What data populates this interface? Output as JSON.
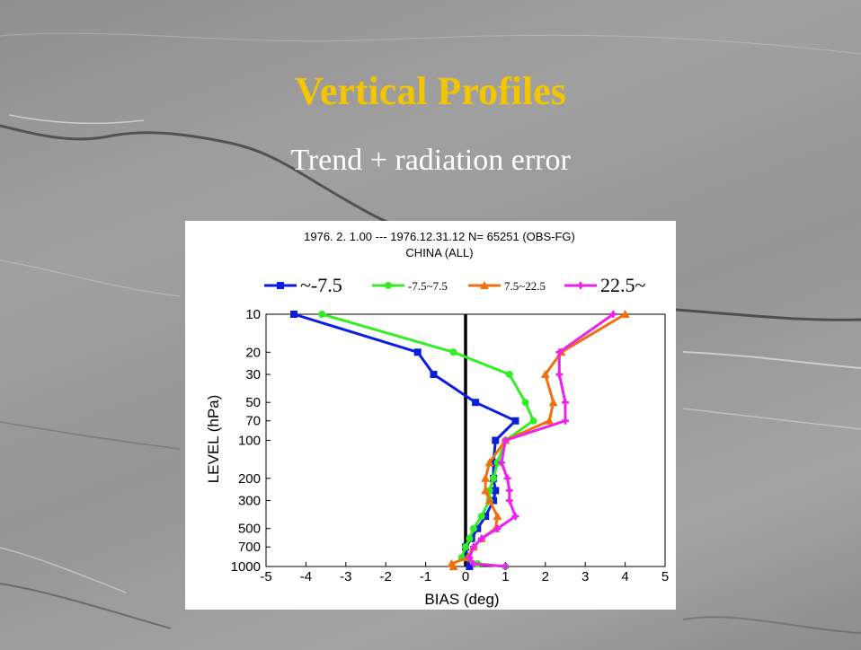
{
  "slide": {
    "title": "Vertical Profiles",
    "subtitle": "Trend + radiation error",
    "title_color": "#f2c500",
    "subtitle_color": "#ffffff"
  },
  "chart_data": {
    "type": "line",
    "header_line1": "1976. 2. 1.00 --- 1976.12.31.12   N= 65251   (OBS-FG)",
    "header_line2": "CHINA (ALL)",
    "xlabel": "BIAS (deg)",
    "ylabel": "LEVEL (hPa)",
    "xlim": [
      -5,
      5
    ],
    "ylim": [
      1000,
      10
    ],
    "y_scale": "log",
    "x_ticks": [
      -5,
      -4,
      -3,
      -2,
      -1,
      0,
      1,
      2,
      3,
      4,
      5
    ],
    "x_tick_labels": [
      "-5",
      "-4",
      "-3",
      "-2",
      "-1",
      "0",
      "1",
      "2",
      "3",
      "4",
      "5"
    ],
    "y_ticks": [
      10,
      20,
      30,
      50,
      70,
      100,
      200,
      300,
      500,
      700,
      1000
    ],
    "y_tick_labels": [
      "10",
      "20",
      "30",
      "50",
      "70",
      "100",
      "200",
      "300",
      "500",
      "700",
      "1000"
    ],
    "zero_line": true,
    "grid": false,
    "legend_position": "top",
    "series": [
      {
        "name": "~-7.5",
        "color": "#0a1ee0",
        "marker": "square",
        "points": [
          [
            -4.3,
            10
          ],
          [
            -1.2,
            20
          ],
          [
            -0.8,
            30
          ],
          [
            0.25,
            50
          ],
          [
            1.25,
            70
          ],
          [
            0.75,
            100
          ],
          [
            0.7,
            150
          ],
          [
            0.7,
            200
          ],
          [
            0.75,
            250
          ],
          [
            0.7,
            300
          ],
          [
            0.5,
            400
          ],
          [
            0.3,
            500
          ],
          [
            0.15,
            600
          ],
          [
            0.0,
            700
          ],
          [
            0.05,
            850
          ],
          [
            0.1,
            1000
          ]
        ]
      },
      {
        "name": "-7.5~7.5",
        "color": "#33ee22",
        "marker": "circle",
        "points": [
          [
            -3.6,
            10
          ],
          [
            -0.3,
            20
          ],
          [
            1.1,
            30
          ],
          [
            1.5,
            50
          ],
          [
            1.7,
            70
          ],
          [
            1.0,
            100
          ],
          [
            0.8,
            150
          ],
          [
            0.7,
            200
          ],
          [
            0.6,
            250
          ],
          [
            0.6,
            300
          ],
          [
            0.4,
            400
          ],
          [
            0.2,
            500
          ],
          [
            0.1,
            600
          ],
          [
            0.0,
            700
          ],
          [
            -0.1,
            850
          ],
          [
            0.3,
            950
          ],
          [
            1.0,
            1000
          ]
        ]
      },
      {
        "name": "7.5~22.5",
        "color": "#f07010",
        "marker": "triangle",
        "points": [
          [
            4.0,
            10
          ],
          [
            2.4,
            20
          ],
          [
            2.0,
            30
          ],
          [
            2.2,
            50
          ],
          [
            2.1,
            70
          ],
          [
            1.0,
            100
          ],
          [
            0.6,
            150
          ],
          [
            0.5,
            200
          ],
          [
            0.5,
            250
          ],
          [
            0.6,
            300
          ],
          [
            0.8,
            400
          ],
          [
            0.75,
            500
          ],
          [
            0.4,
            600
          ],
          [
            0.2,
            700
          ],
          [
            0.05,
            850
          ],
          [
            -0.35,
            950
          ],
          [
            -0.3,
            1000
          ]
        ]
      },
      {
        "name": "22.5~",
        "color": "#ee22ee",
        "marker": "cross",
        "points": [
          [
            3.7,
            10
          ],
          [
            2.35,
            20
          ],
          [
            2.35,
            30
          ],
          [
            2.5,
            50
          ],
          [
            2.5,
            70
          ],
          [
            1.0,
            100
          ],
          [
            0.9,
            150
          ],
          [
            1.05,
            200
          ],
          [
            1.1,
            250
          ],
          [
            1.1,
            300
          ],
          [
            1.25,
            400
          ],
          [
            0.8,
            500
          ],
          [
            0.4,
            600
          ],
          [
            0.2,
            700
          ],
          [
            0.1,
            850
          ],
          [
            0.2,
            950
          ],
          [
            1.0,
            1000
          ]
        ]
      }
    ]
  }
}
